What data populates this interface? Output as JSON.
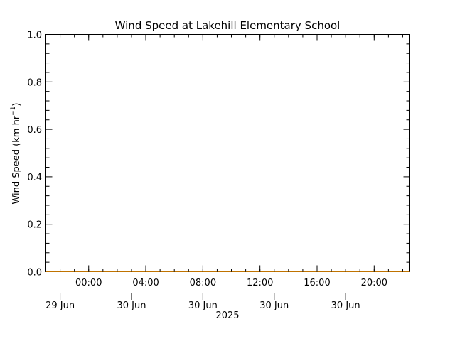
{
  "chart_data": {
    "type": "line",
    "title": "Wind Speed at Lakehill Elementary School",
    "ylabel": {
      "base": "Wind Speed (km hr",
      "sup": "−1",
      "tail": ")"
    },
    "ylim": [
      0,
      1
    ],
    "yticks": [
      {
        "value": 0.0,
        "label": "0.0"
      },
      {
        "value": 0.2,
        "label": "0.2"
      },
      {
        "value": 0.4,
        "label": "0.4"
      },
      {
        "value": 0.6,
        "label": "0.6"
      },
      {
        "value": 0.8,
        "label": "0.8"
      },
      {
        "value": 1.0,
        "label": "1.0"
      }
    ],
    "xlim": [
      "2025-06-29T21:00",
      "2025-06-30T22:30"
    ],
    "time_ticks": [
      {
        "time": "2025-06-30T00:00",
        "label": "00:00"
      },
      {
        "time": "2025-06-30T04:00",
        "label": "04:00"
      },
      {
        "time": "2025-06-30T08:00",
        "label": "08:00"
      },
      {
        "time": "2025-06-30T12:00",
        "label": "12:00"
      },
      {
        "time": "2025-06-30T16:00",
        "label": "16:00"
      },
      {
        "time": "2025-06-30T20:00",
        "label": "20:00"
      }
    ],
    "date_ticks": [
      {
        "time": "2025-06-29T22:00",
        "label": "29 Jun"
      },
      {
        "time": "2025-06-30T03:00",
        "label": "30 Jun"
      },
      {
        "time": "2025-06-30T08:00",
        "label": "30 Jun"
      },
      {
        "time": "2025-06-30T13:00",
        "label": "30 Jun"
      },
      {
        "time": "2025-06-30T18:00",
        "label": "30 Jun"
      }
    ],
    "year_label": "2025",
    "series": [
      {
        "color": "#ff9900",
        "x": [
          "2025-06-29T21:00",
          "2025-06-30T22:30"
        ],
        "y": [
          0,
          0
        ]
      }
    ],
    "grid": false
  }
}
